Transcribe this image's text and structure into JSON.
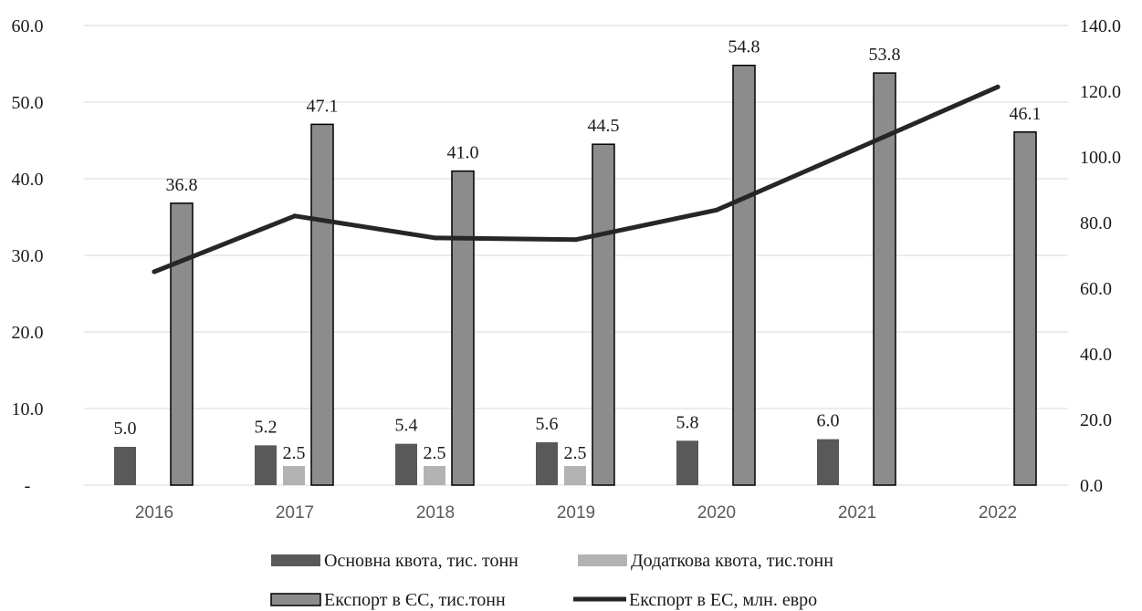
{
  "chart_data": {
    "type": "bar",
    "categories": [
      "2016",
      "2017",
      "2018",
      "2019",
      "2020",
      "2021",
      "2022"
    ],
    "series": [
      {
        "name": "Основна квота, тис. тонн",
        "type": "bar",
        "axis": "left",
        "color": "#595959",
        "values": [
          5.0,
          5.2,
          5.4,
          5.6,
          5.8,
          6.0,
          null
        ],
        "labels": [
          "5.0",
          "5.2",
          "5.4",
          "5.6",
          "5.8",
          "6.0",
          ""
        ]
      },
      {
        "name": "Додаткова квота, тис.тонн",
        "type": "bar",
        "axis": "left",
        "color": "#b3b3b3",
        "values": [
          null,
          2.5,
          2.5,
          2.5,
          null,
          null,
          null
        ],
        "labels": [
          "",
          "2.5",
          "2.5",
          "2.5",
          "",
          "",
          ""
        ]
      },
      {
        "name": "Експорт в ЄС, тис.тонн",
        "type": "bar",
        "axis": "left",
        "color": "#8c8c8c",
        "outline": "#000000",
        "values": [
          36.8,
          47.1,
          41.0,
          44.5,
          54.8,
          53.8,
          46.1
        ],
        "labels": [
          "36.8",
          "47.1",
          "41.0",
          "44.5",
          "54.8",
          "53.8",
          "46.1"
        ]
      },
      {
        "name": "Експорт в ЕС, млн. евро",
        "type": "line",
        "axis": "right",
        "color": "#262626",
        "values": [
          65.0,
          82.0,
          75.3,
          74.8,
          83.8,
          102.5,
          121.3
        ]
      }
    ],
    "y_left": {
      "min": 0,
      "max": 60,
      "step": 10,
      "tick_labels": [
        "-",
        "10.0",
        "20.0",
        "30.0",
        "40.0",
        "50.0",
        "60.0"
      ]
    },
    "y_right": {
      "min": 0,
      "max": 140,
      "step": 20,
      "tick_labels": [
        "0.0",
        "20.0",
        "40.0",
        "60.0",
        "80.0",
        "100.0",
        "120.0",
        "140.0"
      ]
    },
    "grid": true,
    "legend_position": "bottom",
    "title": "",
    "xlabel": "",
    "ylabel": ""
  }
}
